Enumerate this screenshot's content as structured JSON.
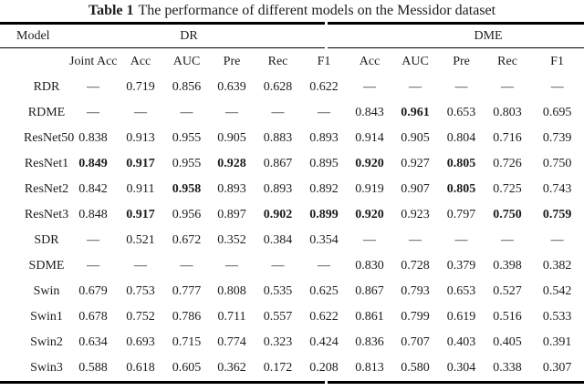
{
  "caption": {
    "label": "Table 1",
    "text": "The performance of different models on the Messidor dataset"
  },
  "colors": {
    "background": "#ffffff",
    "text": "#1c1c1c",
    "rule": "#000000"
  },
  "table": {
    "group_headers": [
      "Model",
      "DR",
      "DME"
    ],
    "sub_headers": [
      "Joint Acc",
      "Acc",
      "AUC",
      "Pre",
      "Rec",
      "F1",
      "Acc",
      "AUC",
      "Pre",
      "Rec",
      "F1"
    ],
    "rows": [
      {
        "model": "RDR",
        "values": [
          "—",
          "0.719",
          "0.856",
          "0.639",
          "0.628",
          "0.622",
          "—",
          "—",
          "—",
          "—",
          "—"
        ],
        "bold": []
      },
      {
        "model": "RDME",
        "values": [
          "—",
          "—",
          "—",
          "—",
          "—",
          "—",
          "0.843",
          "0.961",
          "0.653",
          "0.803",
          "0.695"
        ],
        "bold": [
          7
        ]
      },
      {
        "model": "ResNet50",
        "values": [
          "0.838",
          "0.913",
          "0.955",
          "0.905",
          "0.883",
          "0.893",
          "0.914",
          "0.905",
          "0.804",
          "0.716",
          "0.739"
        ],
        "bold": []
      },
      {
        "model": "ResNet1",
        "values": [
          "0.849",
          "0.917",
          "0.955",
          "0.928",
          "0.867",
          "0.895",
          "0.920",
          "0.927",
          "0.805",
          "0.726",
          "0.750"
        ],
        "bold": [
          0,
          1,
          3,
          6,
          8
        ]
      },
      {
        "model": "ResNet2",
        "values": [
          "0.842",
          "0.911",
          "0.958",
          "0.893",
          "0.893",
          "0.892",
          "0.919",
          "0.907",
          "0.805",
          "0.725",
          "0.743"
        ],
        "bold": [
          2,
          8
        ]
      },
      {
        "model": "ResNet3",
        "values": [
          "0.848",
          "0.917",
          "0.956",
          "0.897",
          "0.902",
          "0.899",
          "0.920",
          "0.923",
          "0.797",
          "0.750",
          "0.759"
        ],
        "bold": [
          1,
          4,
          5,
          6,
          9,
          10
        ]
      },
      {
        "model": "SDR",
        "values": [
          "—",
          "0.521",
          "0.672",
          "0.352",
          "0.384",
          "0.354",
          "—",
          "—",
          "—",
          "—",
          "—"
        ],
        "bold": []
      },
      {
        "model": "SDME",
        "values": [
          "—",
          "—",
          "—",
          "—",
          "—",
          "—",
          "0.830",
          "0.728",
          "0.379",
          "0.398",
          "0.382"
        ],
        "bold": []
      },
      {
        "model": "Swin",
        "values": [
          "0.679",
          "0.753",
          "0.777",
          "0.808",
          "0.535",
          "0.625",
          "0.867",
          "0.793",
          "0.653",
          "0.527",
          "0.542"
        ],
        "bold": []
      },
      {
        "model": "Swin1",
        "values": [
          "0.678",
          "0.752",
          "0.786",
          "0.711",
          "0.557",
          "0.622",
          "0.861",
          "0.799",
          "0.619",
          "0.516",
          "0.533"
        ],
        "bold": []
      },
      {
        "model": "Swin2",
        "values": [
          "0.634",
          "0.693",
          "0.715",
          "0.774",
          "0.323",
          "0.424",
          "0.836",
          "0.707",
          "0.403",
          "0.405",
          "0.391"
        ],
        "bold": []
      },
      {
        "model": "Swin3",
        "values": [
          "0.588",
          "0.618",
          "0.605",
          "0.362",
          "0.172",
          "0.208",
          "0.813",
          "0.580",
          "0.304",
          "0.338",
          "0.307"
        ],
        "bold": []
      }
    ]
  }
}
